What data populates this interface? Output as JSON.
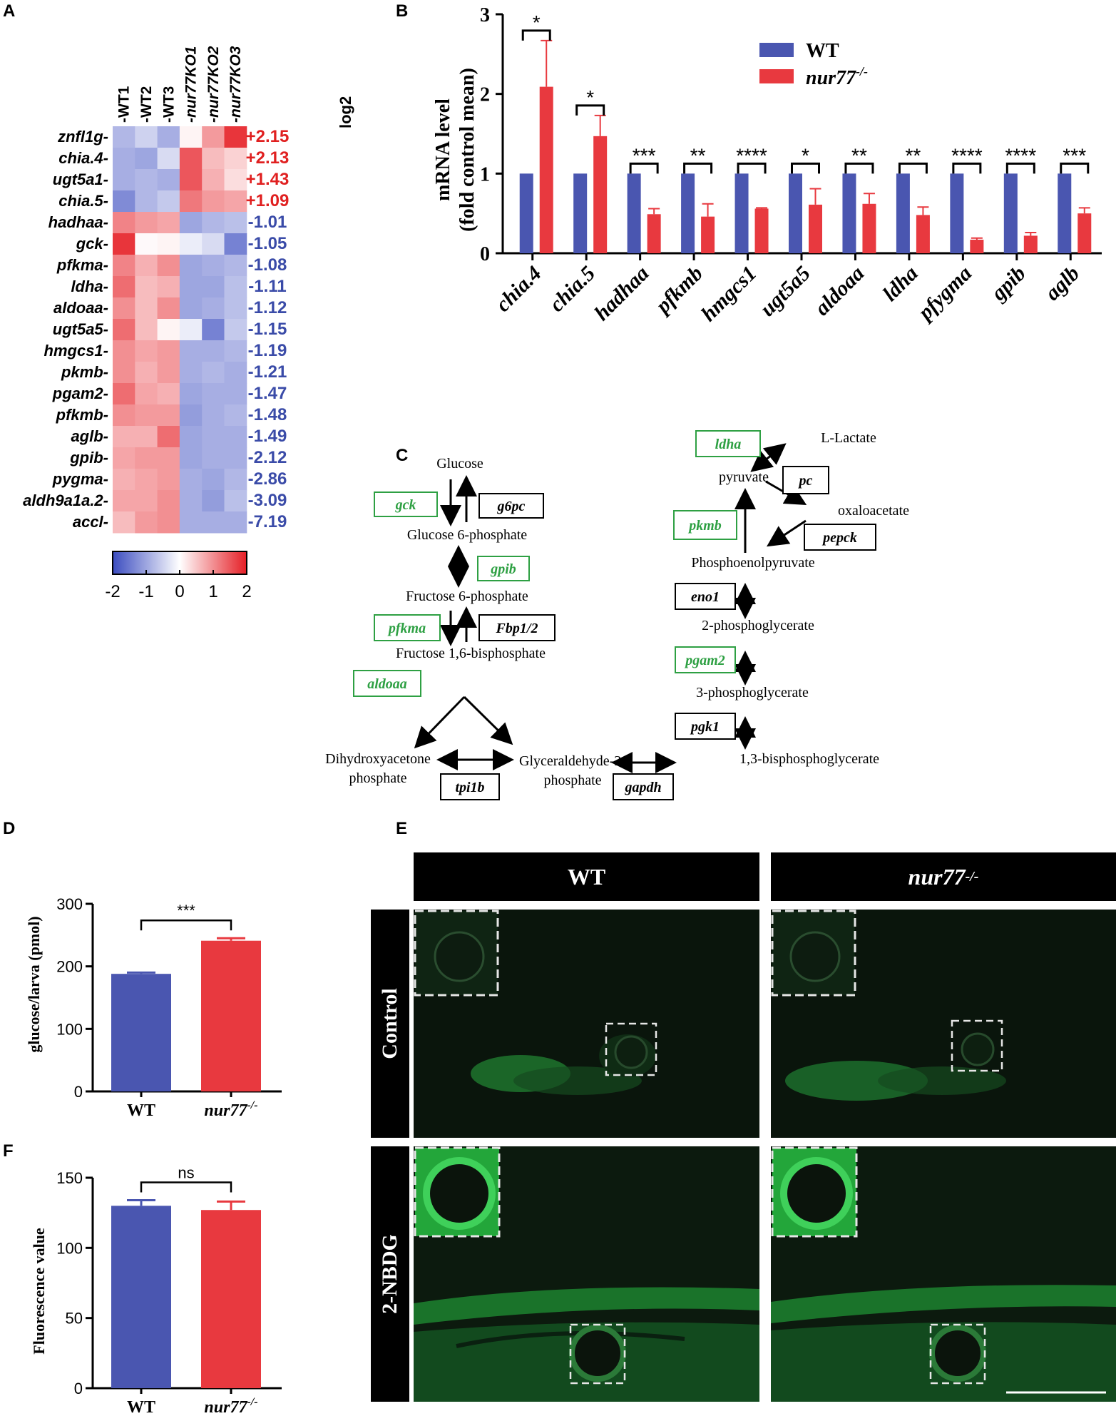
{
  "panels": {
    "A": "A",
    "B": "B",
    "C": "C",
    "D": "D",
    "E": "E",
    "F": "F"
  },
  "colors": {
    "wt": "#4A56B0",
    "ko": "#E8393F",
    "green": "#2EA043",
    "blue_text": "#3A4BA8",
    "red_text": "#E02020"
  },
  "chart_data": [
    {
      "id": "A",
      "type": "heatmap",
      "title": "",
      "columns": [
        "WT1",
        "WT2",
        "WT3",
        "nur77KO1",
        "nur77KO2",
        "nur77KO3"
      ],
      "log2_header": "log2",
      "rows": [
        {
          "gene": "znfl1g",
          "log2": "+2.15",
          "values": [
            -0.8,
            -0.5,
            -0.9,
            0.1,
            0.9,
            1.8
          ]
        },
        {
          "gene": "chia.4",
          "log2": "+2.13",
          "values": [
            -0.9,
            -1.0,
            -0.4,
            1.5,
            0.6,
            0.4
          ]
        },
        {
          "gene": "ugt5a1",
          "log2": "+1.43",
          "values": [
            -0.9,
            -0.8,
            -0.9,
            1.5,
            0.7,
            0.3
          ]
        },
        {
          "gene": "chia.5",
          "log2": "+1.09",
          "values": [
            -1.3,
            -0.8,
            -0.6,
            1.2,
            0.9,
            0.8
          ]
        },
        {
          "gene": "hadhaa",
          "log2": "-1.01",
          "values": [
            1.1,
            0.9,
            0.8,
            -1.0,
            -0.8,
            -0.7
          ]
        },
        {
          "gene": "gck",
          "log2": "-1.05",
          "values": [
            1.8,
            0.05,
            0.1,
            -0.2,
            -0.4,
            -1.4
          ]
        },
        {
          "gene": "pfkma",
          "log2": "-1.08",
          "values": [
            1.1,
            0.7,
            1.0,
            -1.0,
            -0.9,
            -0.8
          ]
        },
        {
          "gene": "ldha",
          "log2": "-1.11",
          "values": [
            1.3,
            0.6,
            0.7,
            -1.0,
            -1.0,
            -0.7
          ]
        },
        {
          "gene": "aldoaa",
          "log2": "-1.12",
          "values": [
            1.0,
            0.6,
            1.0,
            -1.0,
            -0.9,
            -0.7
          ]
        },
        {
          "gene": "ugt5a5",
          "log2": "-1.15",
          "values": [
            1.3,
            0.6,
            0.1,
            -0.2,
            -1.4,
            -0.6
          ]
        },
        {
          "gene": "hmgcs1",
          "log2": "-1.19",
          "values": [
            1.0,
            0.8,
            0.9,
            -0.9,
            -0.9,
            -0.8
          ]
        },
        {
          "gene": "pkmb",
          "log2": "-1.21",
          "values": [
            1.0,
            0.7,
            0.9,
            -0.9,
            -0.8,
            -0.9
          ]
        },
        {
          "gene": "pgam2",
          "log2": "-1.47",
          "values": [
            1.3,
            0.8,
            0.7,
            -1.0,
            -0.9,
            -0.9
          ]
        },
        {
          "gene": "pfkmb",
          "log2": "-1.48",
          "values": [
            1.0,
            0.9,
            0.9,
            -1.1,
            -0.9,
            -0.8
          ]
        },
        {
          "gene": "aglb",
          "log2": "-1.49",
          "values": [
            0.7,
            0.7,
            1.3,
            -1.0,
            -0.9,
            -0.9
          ]
        },
        {
          "gene": "gpib",
          "log2": "-2.12",
          "values": [
            0.8,
            0.9,
            0.9,
            -1.0,
            -0.9,
            -0.9
          ]
        },
        {
          "gene": "pygma",
          "log2": "-2.86",
          "values": [
            0.7,
            0.8,
            0.9,
            -0.9,
            -1.0,
            -0.8
          ]
        },
        {
          "gene": "aldh9a1a.2",
          "log2": "-3.09",
          "values": [
            0.8,
            0.8,
            1.0,
            -0.9,
            -1.1,
            -0.7
          ]
        },
        {
          "gene": "accl",
          "log2": "-7.19",
          "values": [
            0.6,
            0.9,
            1.0,
            -0.9,
            -0.9,
            -0.9
          ]
        }
      ],
      "colorbar": {
        "min": -2,
        "max": 2,
        "ticks": [
          "-2",
          "-1",
          "0",
          "1",
          "2"
        ]
      }
    },
    {
      "id": "B",
      "type": "bar",
      "title": "",
      "ylabel_line1": "mRNA level",
      "ylabel_line2": "(fold control mean)",
      "ylim": [
        0,
        3
      ],
      "yticks": [
        "0",
        "1",
        "2",
        "3"
      ],
      "categories": [
        "chia.4",
        "chia.5",
        "hadhaa",
        "pfkmb",
        "hmgcs1",
        "ugt5a5",
        "aldoaa",
        "ldha",
        "pfygma",
        "gpib",
        "aglb"
      ],
      "series": [
        {
          "name": "WT",
          "values": [
            1,
            1,
            1,
            1,
            1,
            1,
            1,
            1,
            1,
            1,
            1
          ],
          "errors": [
            0,
            0,
            0,
            0,
            0,
            0,
            0,
            0,
            0,
            0,
            0
          ]
        },
        {
          "name": "nur77",
          "values": [
            2.09,
            1.47,
            0.49,
            0.46,
            0.56,
            0.61,
            0.62,
            0.48,
            0.17,
            0.22,
            0.5
          ],
          "errors": [
            0.58,
            0.26,
            0.07,
            0.16,
            0.01,
            0.2,
            0.13,
            0.1,
            0.02,
            0.04,
            0.07
          ]
        }
      ],
      "significance": [
        "*",
        "*",
        "***",
        "**",
        "****",
        "*",
        "**",
        "**",
        "****",
        "****",
        "***"
      ],
      "legend": {
        "wt": "WT",
        "ko": "nur77",
        "ko_sup": "-/-"
      }
    },
    {
      "id": "D",
      "type": "bar",
      "ylabel": "glucose/larva (pmol)",
      "ylim": [
        0,
        300
      ],
      "yticks": [
        "0",
        "100",
        "200",
        "300"
      ],
      "categories": [
        "WT",
        "nur77"
      ],
      "sup": "-/-",
      "values": [
        188,
        241
      ],
      "errors": [
        2,
        4
      ],
      "significance": "***"
    },
    {
      "id": "F",
      "type": "bar",
      "ylabel": "Fluorescence value",
      "ylim": [
        0,
        150
      ],
      "yticks": [
        "0",
        "50",
        "100",
        "150"
      ],
      "categories": [
        "WT",
        "nur77"
      ],
      "sup": "-/-",
      "values": [
        130,
        127
      ],
      "errors": [
        4,
        6
      ],
      "significance": "ns"
    }
  ],
  "pathway": {
    "metabolites": {
      "glucose": "Glucose",
      "g6p": "Glucose 6-phosphate",
      "f6p": "Fructose 6-phosphate",
      "f16bp": "Fructose 1,6-bisphosphate",
      "dhap1": "Dihydroxyacetone",
      "dhap2": "phosphate",
      "gap1": "Glyceraldehyde-3-",
      "gap2": "phosphate",
      "bpg": "1,3-bisphosphoglycerate",
      "pg3": "3-phosphoglycerate",
      "pg2": "2-phosphoglycerate",
      "pep": "Phosphoenolpyruvate",
      "pyruvate": "pyruvate",
      "lactate": "L-Lactate",
      "oaa": "oxaloacetate"
    },
    "enzymes_green": {
      "gck": "gck",
      "gpib": "gpib",
      "pfkma": "pfkma",
      "aldoaa": "aldoaa",
      "ldha": "ldha",
      "pkmb": "pkmb",
      "pgam2": "pgam2"
    },
    "enzymes_black": {
      "g6pc": "g6pc",
      "fbp": "Fbp1/2",
      "tpi1b": "tpi1b",
      "gapdh": "gapdh",
      "pgk1": "pgk1",
      "eno1": "eno1",
      "pc": "pc",
      "pepck": "pepck"
    }
  },
  "imaging": {
    "col_wt": "WT",
    "col_ko": "nur77",
    "col_ko_sup": "-/-",
    "row_control": "Control",
    "row_nbdg": "2-NBDG"
  }
}
